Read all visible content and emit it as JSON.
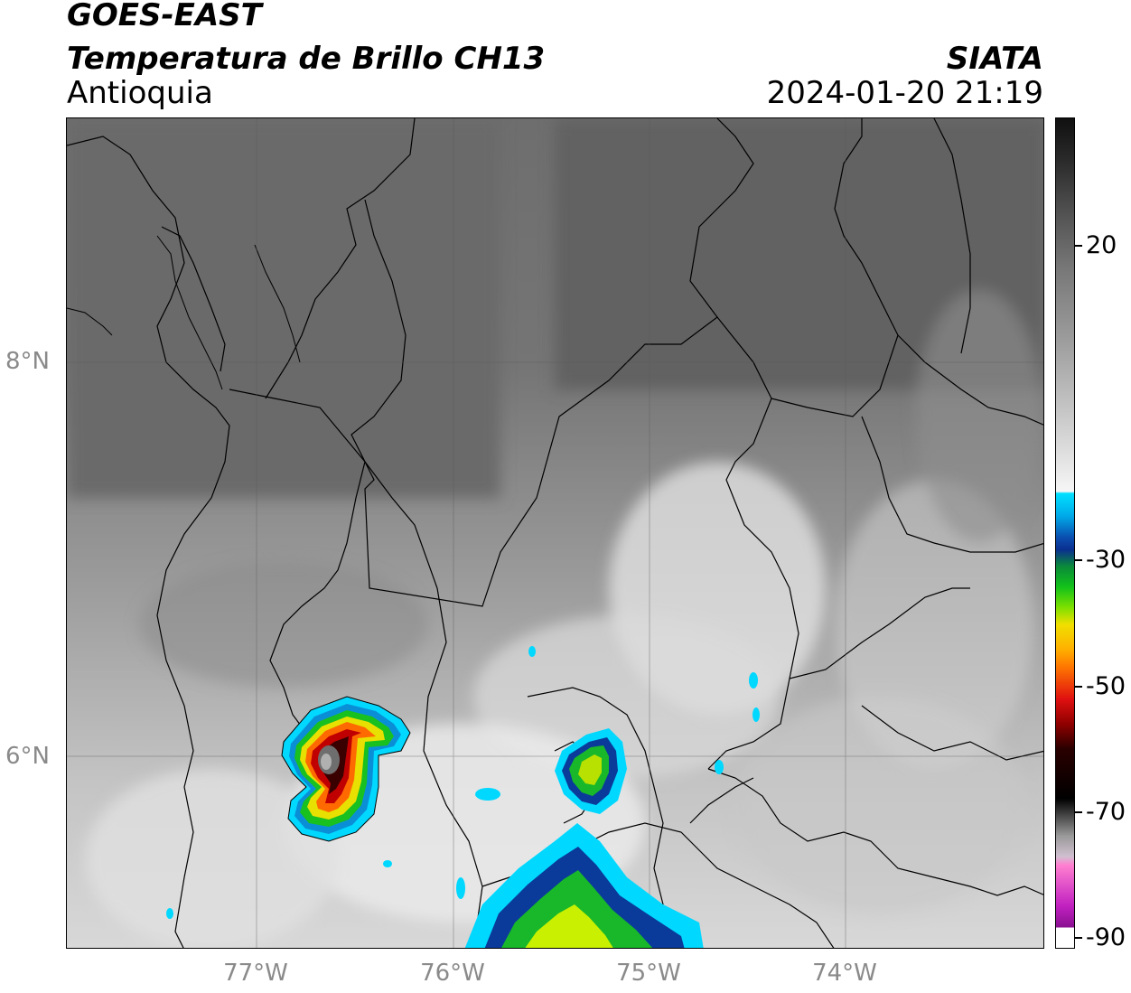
{
  "header": {
    "satellite": "GOES-EAST",
    "product": "Temperatura de Brillo CH13",
    "region": "Antioquia",
    "brand": "SIATA",
    "timestamp": "2024-01-20 21:19"
  },
  "map": {
    "lat_labels": [
      "8°N",
      "6°N"
    ],
    "lon_labels": [
      "77°W",
      "76°W",
      "75°W",
      "74°W"
    ],
    "lon_extent": [
      -77.95,
      -73.0
    ],
    "lat_extent": [
      5.0,
      9.2
    ],
    "storm_cells": [
      {
        "name": "western-convective-cell",
        "lon": -76.5,
        "lat": 5.98,
        "min_temp": -80
      },
      {
        "name": "central-convective-cell",
        "lon": -75.25,
        "lat": 5.8,
        "min_temp": -45
      },
      {
        "name": "southern-convective-cell",
        "lon": -75.45,
        "lat": 5.1,
        "min_temp": -45
      }
    ]
  },
  "colorbar": {
    "labels": [
      "20",
      "-30",
      "-50",
      "-70",
      "-90"
    ],
    "colors": {
      "warm_gray": "#6b6b6b",
      "white": "#f2f2f2",
      "cyan": "#00d8ff",
      "blue": "#0a2f8f",
      "green": "#12c21a",
      "yellow": "#f0e000",
      "orange": "#ff7a00",
      "red": "#e01010",
      "dark_red": "#4a0000",
      "magenta": "#c020c0"
    }
  }
}
